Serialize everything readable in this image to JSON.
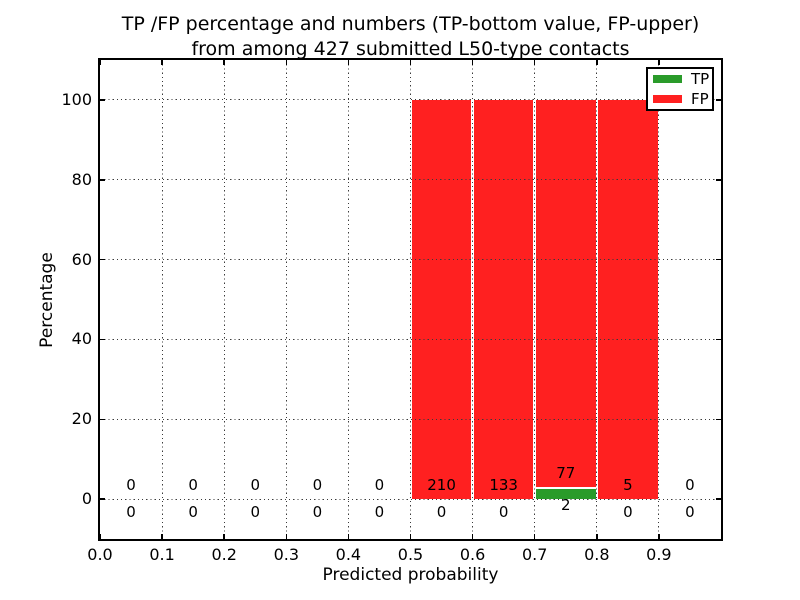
{
  "figure": {
    "title_line1": "TP /FP percentage and numbers (TP-bottom value, FP-upper)",
    "title_line2": "from among 427 submitted L50-type contacts"
  },
  "chart_data": {
    "type": "bar",
    "stacked": true,
    "title": "TP /FP percentage and numbers (TP-bottom value, FP-upper)\nfrom among 427 submitted L50-type contacts",
    "xlabel": "Predicted probability",
    "ylabel": "Percentage",
    "xlim": [
      0.0,
      1.0
    ],
    "ylim": [
      -10,
      110
    ],
    "grid": true,
    "total_contacts": 427,
    "bin_edges": [
      0.0,
      0.1,
      0.2,
      0.3,
      0.4,
      0.5,
      0.6,
      0.7,
      0.8,
      0.9,
      1.0
    ],
    "x_tick_labels": [
      "0.0",
      "0.1",
      "0.2",
      "0.3",
      "0.4",
      "0.5",
      "0.6",
      "0.7",
      "0.8",
      "0.9"
    ],
    "x_tick_values": [
      0.0,
      0.1,
      0.2,
      0.3,
      0.4,
      0.5,
      0.6,
      0.7,
      0.8,
      0.9
    ],
    "y_tick_labels": [
      "0",
      "20",
      "40",
      "60",
      "80",
      "100"
    ],
    "y_tick_values": [
      0,
      20,
      40,
      60,
      80,
      100
    ],
    "series": [
      {
        "name": "TP",
        "color": "#2a9b2a",
        "counts": [
          0,
          0,
          0,
          0,
          0,
          0,
          0,
          2,
          0,
          0
        ],
        "pct": [
          0,
          0,
          0,
          0,
          0,
          0,
          0,
          2.5,
          0,
          0
        ]
      },
      {
        "name": "FP",
        "color": "#ff2020",
        "counts": [
          0,
          0,
          0,
          0,
          0,
          210,
          133,
          77,
          5,
          0
        ],
        "pct": [
          0,
          0,
          0,
          0,
          0,
          100,
          100,
          97.5,
          100,
          0
        ]
      }
    ],
    "legend": {
      "position": "upper right",
      "entries": [
        {
          "label": "TP",
          "color": "#2a9b2a"
        },
        {
          "label": "FP",
          "color": "#ff2020"
        }
      ]
    }
  }
}
